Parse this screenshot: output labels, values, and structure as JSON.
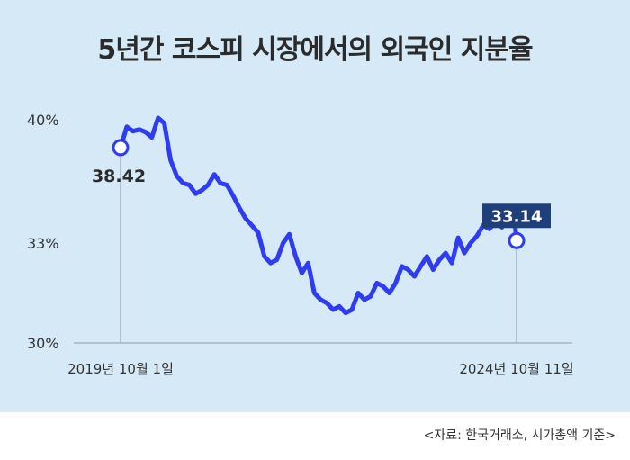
{
  "title": "5년간 코스피 시장에서의 외국인 지분율",
  "source_note": "<자료: 한국거래소, 시가총액 기준>",
  "colors": {
    "background": "#d5e9f7",
    "line": "#2f3cf0",
    "axis": "#8c9aa6",
    "callout_box": "#1f3f7a"
  },
  "chart_data": {
    "type": "line",
    "title": "5년간 코스피 시장에서의 외국인 지분율",
    "x_start_label": "2019년 10월 1일",
    "x_end_label": "2024년 10월 11일",
    "y_ticks": [
      "40%",
      "33%",
      "30%"
    ],
    "ylim": [
      30,
      40
    ],
    "grid": false,
    "series": [
      {
        "x": [
          "2019-10-01",
          "2019-10-30",
          "2019-11-28",
          "2019-12-27",
          "2020-01-25",
          "2020-02-23",
          "2020-03-23",
          "2020-04-21",
          "2020-05-20",
          "2020-06-18",
          "2020-07-17",
          "2020-08-15",
          "2020-09-13",
          "2020-10-12",
          "2020-11-10",
          "2020-12-09",
          "2021-01-07",
          "2021-02-05",
          "2021-03-06",
          "2021-04-04",
          "2021-05-03",
          "2021-06-01",
          "2021-06-30",
          "2021-07-29",
          "2021-08-27",
          "2021-09-25",
          "2021-10-24",
          "2021-11-22",
          "2021-12-21",
          "2022-01-19",
          "2022-02-17",
          "2022-03-18",
          "2022-04-16",
          "2022-05-15",
          "2022-06-13",
          "2022-07-12",
          "2022-08-10",
          "2022-09-08",
          "2022-10-07",
          "2022-11-05",
          "2022-12-04",
          "2023-01-02",
          "2023-01-31",
          "2023-03-01",
          "2023-03-30",
          "2023-04-28",
          "2023-05-27",
          "2023-06-25",
          "2023-07-24",
          "2023-08-22",
          "2023-09-20",
          "2023-10-19",
          "2023-11-17",
          "2023-12-16",
          "2024-01-14",
          "2024-02-12",
          "2024-03-12",
          "2024-04-10",
          "2024-05-09",
          "2024-06-07",
          "2024-07-06",
          "2024-08-04",
          "2024-09-02",
          "2024-10-01",
          "2024-10-11"
        ],
        "values": [
          38.42,
          39.6,
          39.35,
          39.45,
          39.3,
          39.0,
          40.1,
          39.8,
          37.7,
          36.8,
          36.4,
          36.3,
          35.8,
          36.0,
          36.3,
          36.9,
          36.4,
          36.3,
          35.7,
          35.0,
          34.4,
          34.0,
          33.6,
          32.6,
          32.4,
          32.5,
          33.0,
          33.5,
          32.6,
          32.1,
          32.4,
          31.5,
          31.3,
          31.2,
          31.0,
          31.1,
          30.9,
          31.0,
          31.5,
          31.3,
          31.4,
          31.8,
          31.7,
          31.5,
          31.8,
          32.3,
          32.2,
          32.0,
          32.3,
          32.6,
          32.2,
          32.5,
          32.7,
          32.4,
          33.3,
          32.7,
          33.0,
          33.4,
          34.0,
          33.8,
          34.2,
          33.9,
          34.3,
          34.4,
          33.14
        ]
      }
    ],
    "callouts": [
      {
        "value": 38.42,
        "label": "38.42",
        "style": "plain"
      },
      {
        "value": 33.14,
        "label": "33.14",
        "style": "boxed"
      }
    ]
  }
}
